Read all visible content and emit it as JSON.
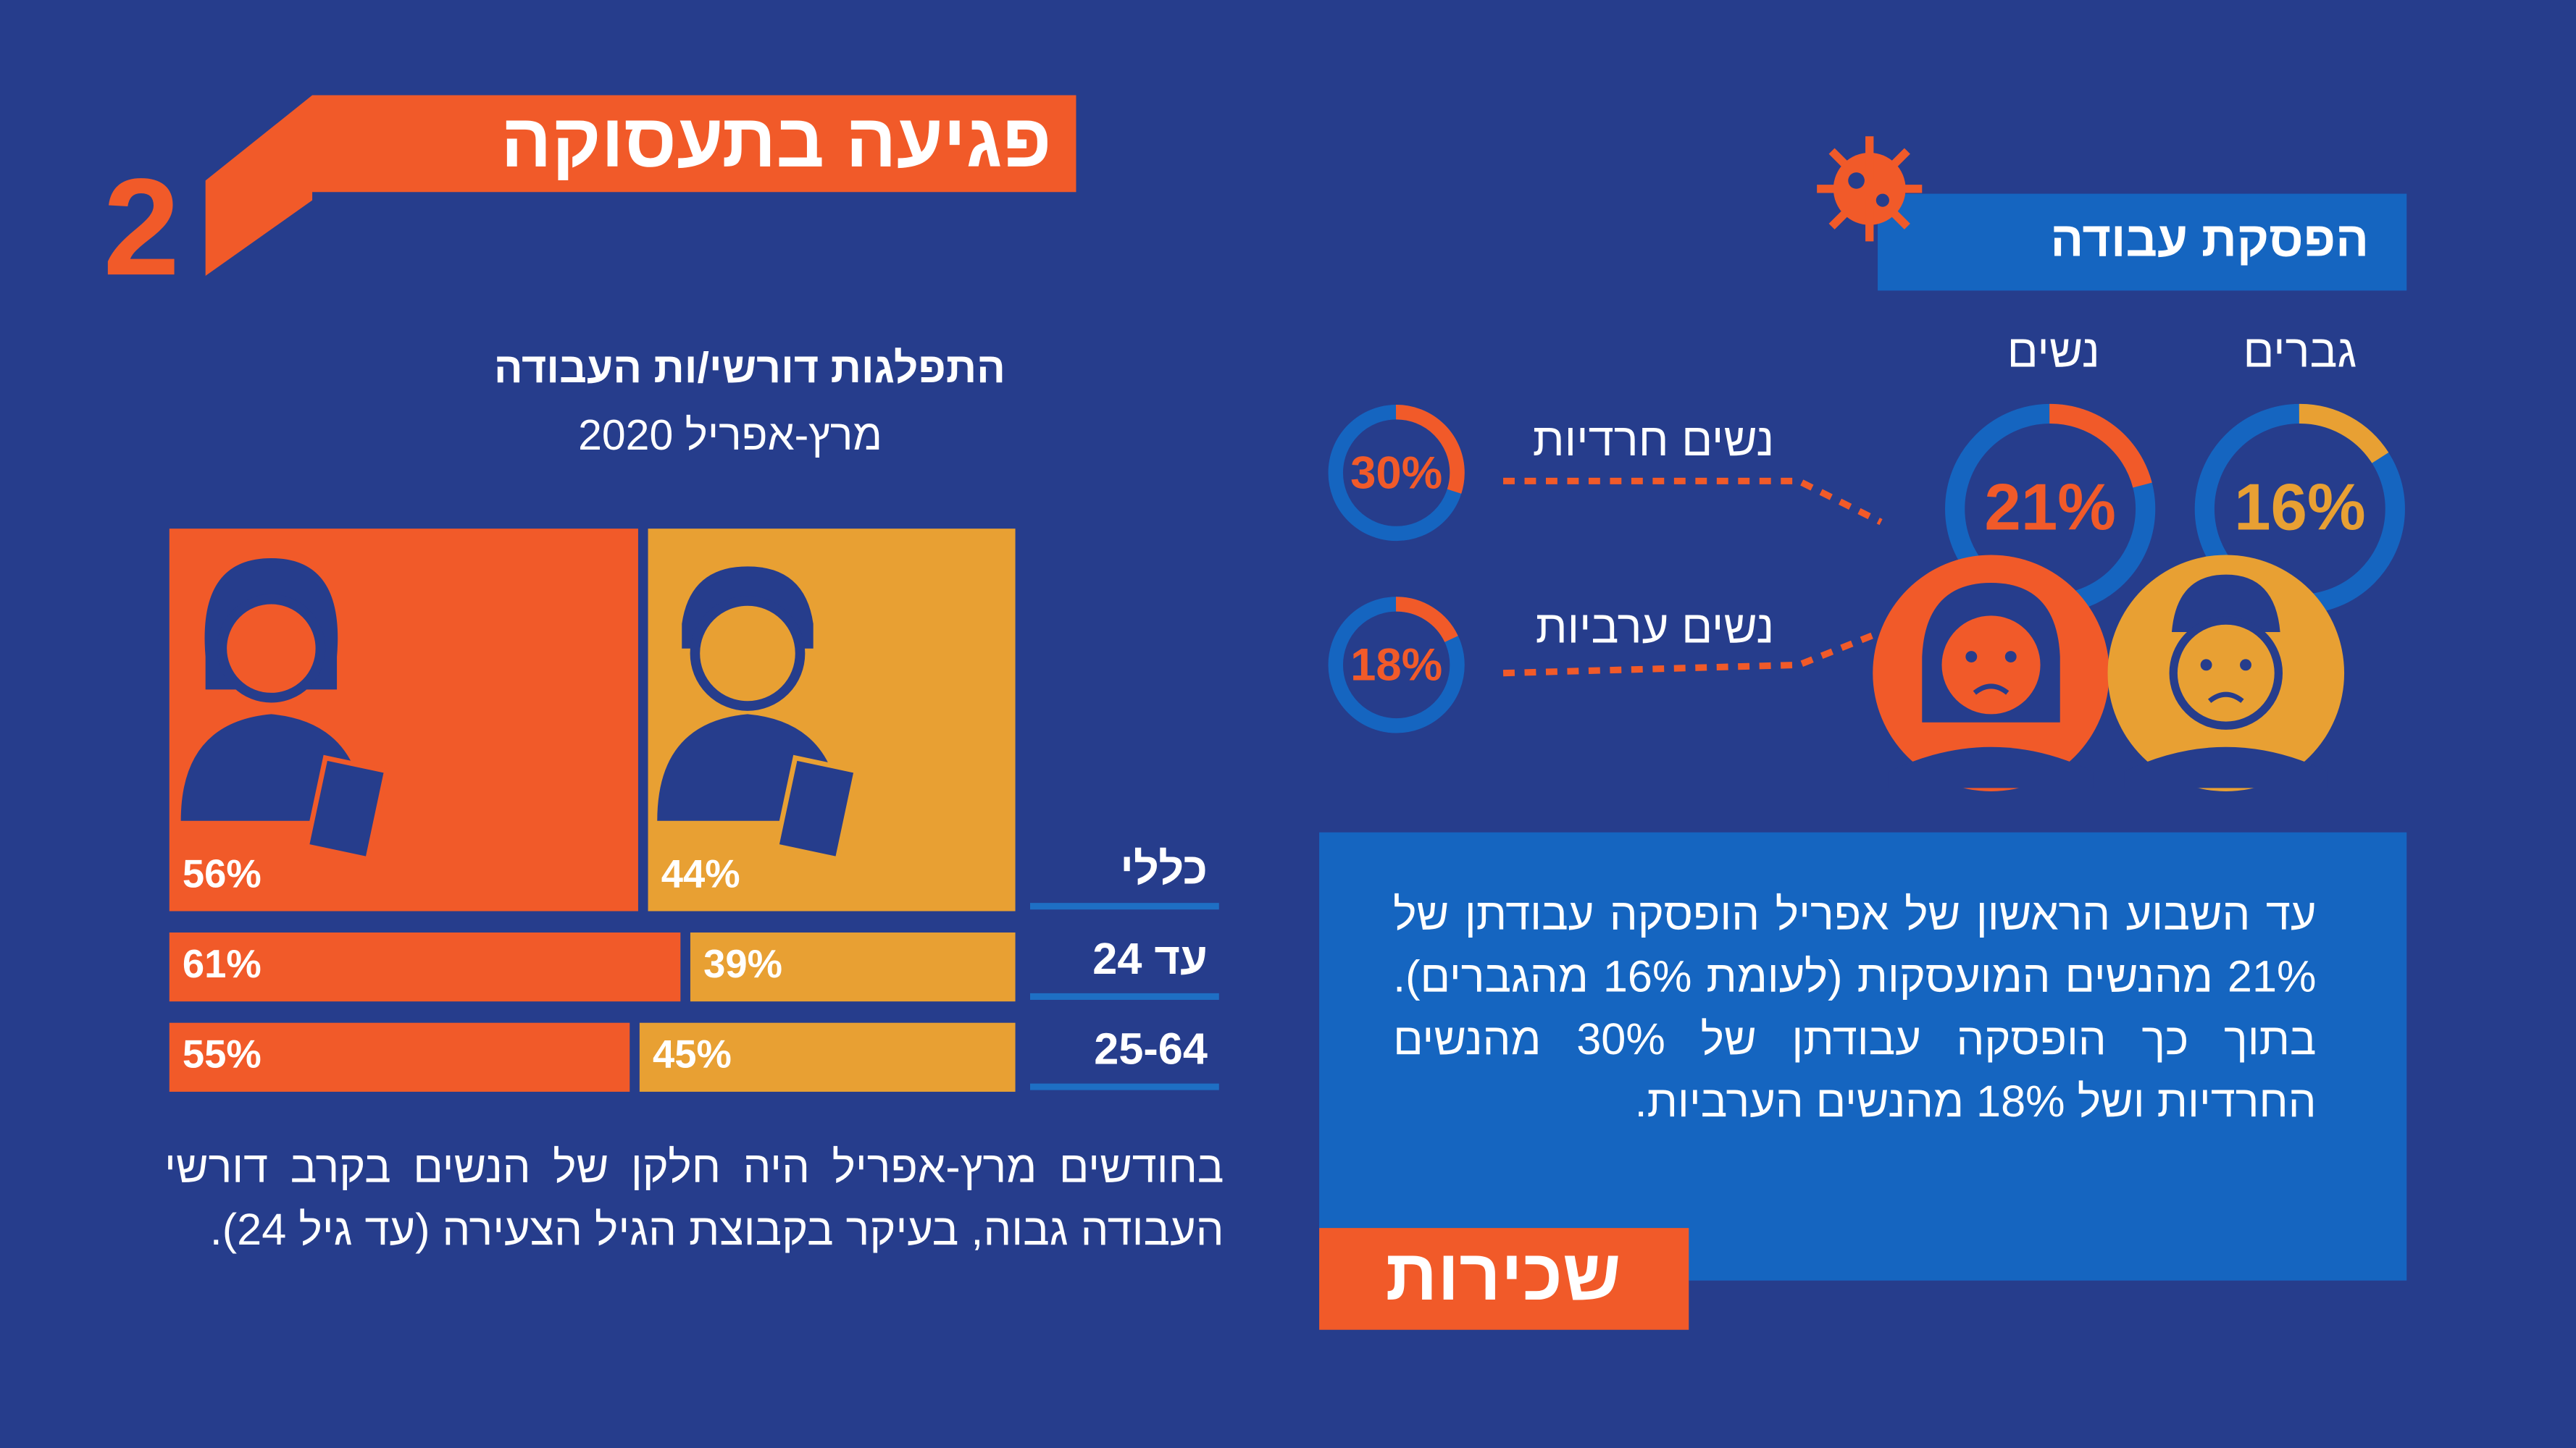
{
  "header": {
    "number": "2",
    "title": "פגיעה בתעסוקה"
  },
  "chart_data": [
    {
      "type": "bar",
      "stacked": true,
      "orientation": "horizontal",
      "title": "התפלגות דורשי/ות העבודה",
      "subtitle": "מרץ-אפריל 2020",
      "categories": [
        "כללי",
        "עד 24",
        "25-64"
      ],
      "series": [
        {
          "color": "#f15a29",
          "values": [
            56,
            61,
            55
          ],
          "value_labels": [
            "56%",
            "61%",
            "55%"
          ]
        },
        {
          "color": "#e8a033",
          "values": [
            44,
            39,
            45
          ],
          "value_labels": [
            "44%",
            "39%",
            "45%"
          ]
        }
      ],
      "xlim": [
        0,
        100
      ],
      "caption": "בחודשים מרץ-אפריל היה חלקן של הנשים בקרב דורשי העבודה גבוה, בעיקר בקבוצת הגיל הצעירה (עד גיל 24)."
    },
    {
      "type": "donut",
      "title": "הפסקת עבודה",
      "categories": [
        "נשים",
        "גברים",
        "נשים חרדיות",
        "נשים ערביות"
      ],
      "values": [
        21,
        16,
        30,
        18
      ],
      "value_labels": [
        "21%",
        "16%",
        "30%",
        "18%"
      ],
      "colors": [
        "#f15a29",
        "#e8a033",
        "#f15a29",
        "#f15a29"
      ],
      "ylim": [
        0,
        100
      ]
    }
  ],
  "body": {
    "paragraph": "עד השבוע הראשון של אפריל הופסקה עבודתן של 21% מהנשים המועסקות (לעומת 16% מהגברים). בתוך כך הופסקה עבודתן של 30% מהנשים החרדיות ושל 18% מהנשים הערביות.",
    "tag": "שכירות"
  }
}
